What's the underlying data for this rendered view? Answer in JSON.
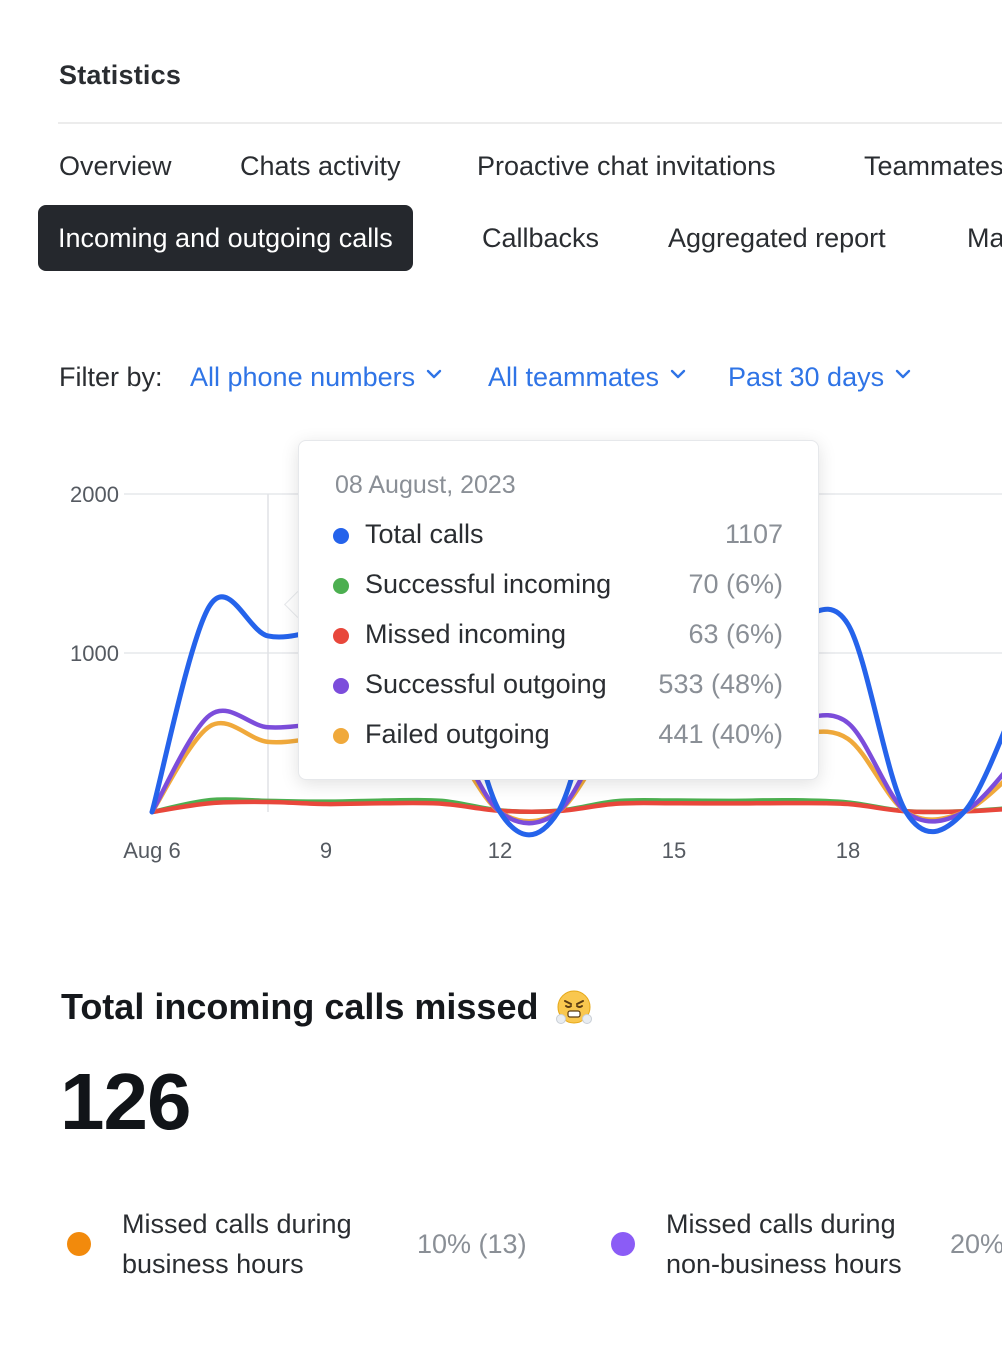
{
  "page_title": "Statistics",
  "tabs": [
    {
      "label": "Overview",
      "active": false
    },
    {
      "label": "Chats activity",
      "active": false
    },
    {
      "label": "Proactive chat invitations",
      "active": false
    },
    {
      "label": "Teammates",
      "active": false
    },
    {
      "label": "Incoming and outgoing calls",
      "active": true
    },
    {
      "label": "Callbacks",
      "active": false
    },
    {
      "label": "Aggregated report",
      "active": false
    },
    {
      "label": "Ma",
      "active": false
    }
  ],
  "filters": {
    "label": "Filter by:",
    "phone_numbers": "All phone numbers",
    "teammates": "All teammates",
    "period": "Past 30 days"
  },
  "chart_data": {
    "type": "line",
    "x_tick_labels": [
      "Aug 6",
      "9",
      "12",
      "15",
      "18"
    ],
    "y_tick_labels": [
      "2000",
      "1000"
    ],
    "ylim": [
      0,
      2000
    ],
    "grid": true,
    "x": [
      "Aug 6",
      "Aug 7",
      "Aug 8",
      "Aug 9",
      "Aug 10",
      "Aug 11",
      "Aug 12",
      "Aug 13",
      "Aug 14",
      "Aug 15",
      "Aug 16",
      "Aug 17",
      "Aug 18",
      "Aug 19",
      "Aug 20",
      "Aug 21"
    ],
    "series": [
      {
        "name": "Total calls",
        "color": "#2563eb",
        "values": [
          0,
          1300,
          1107,
          1150,
          1200,
          1150,
          0,
          0,
          1150,
          1170,
          1160,
          1200,
          1180,
          0,
          0,
          780
        ]
      },
      {
        "name": "Successful outgoing",
        "color": "#7c4ddb",
        "values": [
          0,
          610,
          533,
          560,
          580,
          560,
          0,
          0,
          560,
          570,
          565,
          580,
          560,
          0,
          0,
          380
        ]
      },
      {
        "name": "Failed outgoing",
        "color": "#f0a93b",
        "values": [
          0,
          540,
          441,
          470,
          480,
          470,
          0,
          0,
          470,
          480,
          470,
          490,
          460,
          0,
          0,
          300
        ]
      },
      {
        "name": "Successful incoming",
        "color": "#4caf50",
        "values": [
          0,
          75,
          70,
          65,
          72,
          70,
          10,
          8,
          68,
          72,
          70,
          74,
          60,
          5,
          5,
          30
        ]
      },
      {
        "name": "Missed incoming",
        "color": "#e8473b",
        "values": [
          0,
          55,
          63,
          50,
          55,
          52,
          8,
          6,
          52,
          55,
          54,
          56,
          50,
          4,
          4,
          25
        ]
      }
    ]
  },
  "tooltip": {
    "date": "08 August, 2023",
    "rows": [
      {
        "name": "Total calls",
        "value": "1107",
        "color": "#2563eb"
      },
      {
        "name": "Successful incoming",
        "value": "70 (6%)",
        "color": "#4caf50"
      },
      {
        "name": "Missed incoming",
        "value": "63 (6%)",
        "color": "#e8473b"
      },
      {
        "name": "Successful outgoing",
        "value": "533 (48%)",
        "color": "#7c4ddb"
      },
      {
        "name": "Failed outgoing",
        "value": "441 (40%)",
        "color": "#f0a93b"
      }
    ]
  },
  "missed": {
    "title": "Total incoming calls missed",
    "emoji": "face-with-steam-from-nose-icon",
    "total": "126",
    "breakdown": [
      {
        "label": "Missed calls during business hours",
        "value": "10% (13)",
        "color": "#f28a0c"
      },
      {
        "label": "Missed calls during non-business hours",
        "value": "20%",
        "color": "#8b5cf6"
      }
    ]
  }
}
